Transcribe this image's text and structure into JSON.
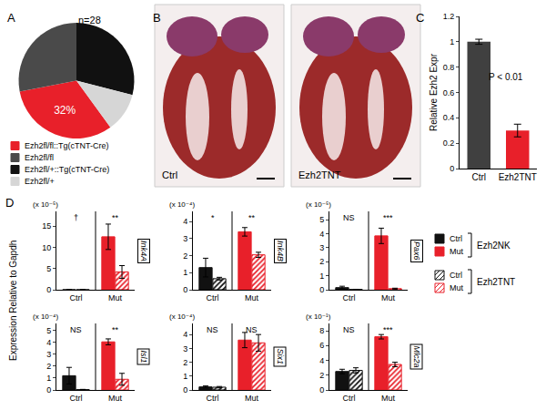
{
  "chart_data": [
    {
      "type": "pie",
      "panel": "A",
      "title": "n=28",
      "categories": [
        "Ezh2fl/fl::Tg(cTNT-Cre)",
        "Ezh2fl/fl",
        "Ezh2fl/+::Tg(cTNT-Cre)",
        "Ezh2fl/+"
      ],
      "values": [
        32,
        28,
        29,
        11
      ],
      "value_labels": [
        "32%",
        null,
        null,
        null
      ],
      "colors": [
        "#e8202a",
        "#4a4a4a",
        "#111111",
        "#d6d6d6"
      ],
      "legend": "bottom"
    },
    {
      "type": "image",
      "panel": "B",
      "categories": [
        "Ctrl",
        "Ezh2TNT"
      ]
    },
    {
      "type": "bar",
      "panel": "C",
      "categories": [
        "Ctrl",
        "Ezh2TNT"
      ],
      "values": [
        1,
        0.3
      ],
      "errors": [
        0.02,
        0.05
      ],
      "colors": [
        "#404040",
        "#e8202a"
      ],
      "ylabel": "Relative Ezh2 Expr",
      "ylim": [
        0,
        1.2
      ],
      "yticks": [
        0,
        0.2,
        0.4,
        0.6,
        0.8,
        1,
        1.2
      ],
      "annotations": [
        "P < 0.01"
      ]
    },
    {
      "type": "bar",
      "panel": "D",
      "title": "Ink4A",
      "subtitle": "(x 10⁻⁵)",
      "ylabel": "Expression Relative to Gapdh",
      "categories": [
        "Ctrl",
        "Mut"
      ],
      "series": [
        {
          "name": "Ezh2NK",
          "colors": [
            "#111111",
            "#e8202a"
          ],
          "marker": "solid",
          "values": [
            0,
            12.5
          ],
          "errors": [
            0,
            3
          ]
        },
        {
          "name": "Ezh2TNT",
          "colors": [
            "#111111",
            "#e8202a"
          ],
          "marker": "hatched",
          "values": [
            0,
            4.2
          ],
          "errors": [
            0,
            1.5
          ]
        }
      ],
      "annotations": [
        "†",
        "**"
      ],
      "ylim": [
        0,
        18.5
      ],
      "yticks": [
        0,
        5,
        10,
        15
      ]
    },
    {
      "type": "bar",
      "title": "Ink4B",
      "subtitle": "(x 10⁻⁴)",
      "categories": [
        "Ctrl",
        "Mut"
      ],
      "series": [
        {
          "name": "Ezh2NK",
          "colors": [
            "#111111",
            "#e8202a"
          ],
          "marker": "solid",
          "values": [
            1.3,
            3.4
          ],
          "errors": [
            0.55,
            0.25
          ]
        },
        {
          "name": "Ezh2TNT",
          "colors": [
            "#111111",
            "#e8202a"
          ],
          "marker": "hatched",
          "values": [
            0.65,
            2.05
          ],
          "errors": [
            0.08,
            0.15
          ]
        }
      ],
      "annotations": [
        "*",
        "**"
      ],
      "ylim": [
        0,
        4.6
      ],
      "yticks": [
        0,
        1,
        2,
        3,
        4
      ]
    },
    {
      "type": "bar",
      "title": "Pax6",
      "subtitle": "(x 10⁻⁵)",
      "categories": [
        "Ctrl",
        "Mut"
      ],
      "series": [
        {
          "name": "Ezh2NK",
          "colors": [
            "#111111",
            "#e8202a"
          ],
          "marker": "solid",
          "values": [
            0.15,
            3.85
          ],
          "errors": [
            0.1,
            0.55
          ]
        },
        {
          "name": "Ezh2TNT",
          "colors": [
            "#111111",
            "#e8202a"
          ],
          "marker": "hatched",
          "values": [
            0.02,
            0.08
          ],
          "errors": [
            0.01,
            0.03
          ]
        }
      ],
      "annotations": [
        "NS",
        "***"
      ],
      "ylim": [
        0,
        5.6
      ],
      "yticks": [
        0,
        1,
        2,
        3,
        4,
        5
      ],
      "legend": "right"
    },
    {
      "type": "bar",
      "title": "Isl1",
      "subtitle": "(x 10⁻⁴)",
      "categories": [
        "Ctrl",
        "Mut"
      ],
      "series": [
        {
          "name": "Ezh2NK",
          "colors": [
            "#111111",
            "#e8202a"
          ],
          "marker": "solid",
          "values": [
            1.2,
            4.05
          ],
          "errors": [
            0.7,
            0.25
          ]
        },
        {
          "name": "Ezh2TNT",
          "colors": [
            "#111111",
            "#e8202a"
          ],
          "marker": "hatched",
          "values": [
            0.03,
            0.9
          ],
          "errors": [
            0.02,
            0.5
          ]
        }
      ],
      "annotations": [
        "NS",
        "**"
      ],
      "ylim": [
        0,
        5.6
      ],
      "yticks": [
        0,
        1,
        2,
        3,
        4,
        5
      ]
    },
    {
      "type": "bar",
      "title": "Six1",
      "subtitle": "(x 10⁻⁴)",
      "categories": [
        "Ctrl",
        "Mut"
      ],
      "series": [
        {
          "name": "Ezh2NK",
          "colors": [
            "#111111",
            "#e8202a"
          ],
          "marker": "solid",
          "values": [
            0.22,
            3.6
          ],
          "errors": [
            0.07,
            0.55
          ]
        },
        {
          "name": "Ezh2TNT",
          "colors": [
            "#111111",
            "#e8202a"
          ],
          "marker": "hatched",
          "values": [
            0.2,
            3.4
          ],
          "errors": [
            0.05,
            0.6
          ]
        }
      ],
      "annotations": [
        "NS",
        "NS"
      ],
      "ylim": [
        0,
        4.8
      ],
      "yticks": [
        0,
        1,
        2,
        3,
        4
      ]
    },
    {
      "type": "bar",
      "title": "Mlc2a",
      "subtitle": "(x 10⁻¹)",
      "categories": [
        "Ctrl",
        "Mut"
      ],
      "series": [
        {
          "name": "Ezh2NK",
          "colors": [
            "#111111",
            "#e8202a"
          ],
          "marker": "solid",
          "values": [
            2.5,
            7.2
          ],
          "errors": [
            0.3,
            0.3
          ]
        },
        {
          "name": "Ezh2TNT",
          "colors": [
            "#111111",
            "#e8202a"
          ],
          "marker": "hatched",
          "values": [
            2.65,
            3.45
          ],
          "errors": [
            0.35,
            0.3
          ]
        }
      ],
      "annotations": [
        "NS",
        "***"
      ],
      "ylim": [
        0,
        9
      ],
      "yticks": [
        0,
        2,
        4,
        6,
        8
      ]
    }
  ]
}
